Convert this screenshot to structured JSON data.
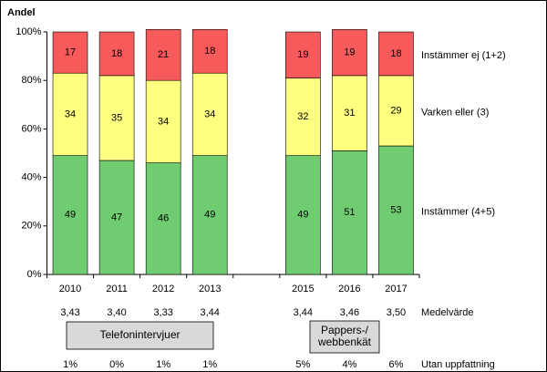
{
  "chart_data": {
    "type": "stacked_bar",
    "ylabel": "Andel",
    "categories": [
      "2010",
      "2011",
      "2012",
      "2013",
      null,
      "2015",
      "2016",
      "2017"
    ],
    "series": [
      {
        "name": "Instämmer (4+5)",
        "color": "#70cc70",
        "values": [
          49,
          47,
          46,
          49,
          null,
          49,
          51,
          53
        ]
      },
      {
        "name": "Varken eller (3)",
        "color": "#ffff80",
        "values": [
          34,
          35,
          34,
          34,
          null,
          32,
          31,
          29
        ]
      },
      {
        "name": "Instämmer ej (1+2)",
        "color": "#f75a5a",
        "values": [
          17,
          18,
          21,
          18,
          null,
          19,
          19,
          18
        ]
      }
    ],
    "ylim": [
      0,
      100
    ],
    "yticks": [
      {
        "value": 0,
        "label": "0%"
      },
      {
        "value": 20,
        "label": "20%"
      },
      {
        "value": 40,
        "label": "40%"
      },
      {
        "value": 60,
        "label": "60%"
      },
      {
        "value": 80,
        "label": "80%"
      },
      {
        "value": 100,
        "label": "100%"
      }
    ],
    "mean_title": "Medelvärde",
    "means": [
      "3,43",
      "3,40",
      "3,33",
      "3,44",
      null,
      "3,44",
      "3,46",
      "3,50"
    ],
    "groups": [
      {
        "label": [
          "Telefonintervjuer"
        ]
      },
      {
        "label": [
          "Pappers-/",
          "webbenkät"
        ]
      }
    ],
    "no_opinion_title": "Utan uppfattning",
    "no_opinion": [
      "1%",
      "0%",
      "1%",
      "1%",
      null,
      "5%",
      "4%",
      "6%"
    ]
  }
}
